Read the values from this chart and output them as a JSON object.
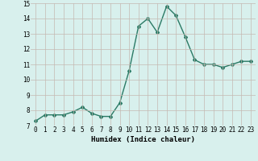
{
  "x": [
    0,
    1,
    2,
    3,
    4,
    5,
    6,
    7,
    8,
    9,
    10,
    11,
    12,
    13,
    14,
    15,
    16,
    17,
    18,
    19,
    20,
    21,
    22,
    23
  ],
  "y": [
    7.3,
    7.7,
    7.7,
    7.7,
    7.9,
    8.2,
    7.8,
    7.6,
    7.6,
    8.5,
    10.6,
    13.5,
    14.0,
    13.1,
    14.8,
    14.2,
    12.8,
    11.3,
    11.0,
    11.0,
    10.8,
    11.0,
    11.2,
    11.2
  ],
  "xlabel": "Humidex (Indice chaleur)",
  "ylim": [
    7,
    15
  ],
  "xlim_min": -0.5,
  "xlim_max": 23.5,
  "yticks": [
    7,
    8,
    9,
    10,
    11,
    12,
    13,
    14,
    15
  ],
  "xticks": [
    0,
    1,
    2,
    3,
    4,
    5,
    6,
    7,
    8,
    9,
    10,
    11,
    12,
    13,
    14,
    15,
    16,
    17,
    18,
    19,
    20,
    21,
    22,
    23
  ],
  "line_color": "#2a7a65",
  "bg_color": "#d8f0ed",
  "grid_color": "#c5b8b2",
  "marker": "D",
  "marker_size": 2.0,
  "line_width": 1.0,
  "tick_fontsize": 5.5,
  "xlabel_fontsize": 6.5
}
